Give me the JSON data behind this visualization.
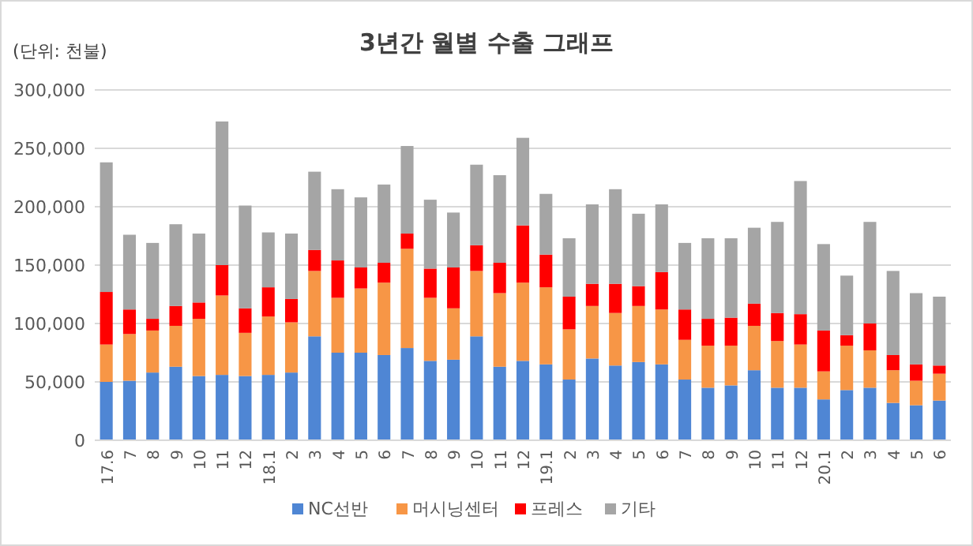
{
  "chart_data": {
    "type": "bar",
    "stacked": true,
    "title": "3년간 월별 수출 그래프",
    "ylabel": "(단위: 천불)",
    "categories": [
      "17.6",
      "7",
      "8",
      "9",
      "10",
      "11",
      "12",
      "18.1",
      "2",
      "3",
      "4",
      "5",
      "6",
      "7",
      "8",
      "9",
      "10",
      "11",
      "12",
      "19.1",
      "2",
      "3",
      "4",
      "5",
      "6",
      "7",
      "8",
      "9",
      "10",
      "11",
      "12",
      "20.1",
      "2",
      "3",
      "4",
      "5",
      "6"
    ],
    "series": [
      {
        "name": "NC선반",
        "color": "#4f86d4",
        "values": [
          50000,
          51000,
          58000,
          63000,
          55000,
          56000,
          55000,
          56000,
          58000,
          89000,
          75000,
          75000,
          73000,
          79000,
          68000,
          69000,
          89000,
          63000,
          68000,
          65000,
          52000,
          70000,
          64000,
          67000,
          65000,
          52000,
          45000,
          47000,
          60000,
          45000,
          45000,
          35000,
          43000,
          45000,
          32000,
          30000,
          34000
        ]
      },
      {
        "name": "머시닝센터",
        "color": "#f79646",
        "values": [
          32000,
          40000,
          36000,
          35000,
          49000,
          68000,
          37000,
          50000,
          43000,
          56000,
          47000,
          55000,
          62000,
          85000,
          54000,
          44000,
          56000,
          63000,
          67000,
          66000,
          43000,
          45000,
          45000,
          48000,
          47000,
          34000,
          36000,
          34000,
          38000,
          40000,
          37000,
          24000,
          38000,
          32000,
          28000,
          21000,
          23000
        ]
      },
      {
        "name": "프레스",
        "color": "#ff0000",
        "values": [
          45000,
          21000,
          10000,
          17000,
          14000,
          26000,
          21000,
          25000,
          20000,
          18000,
          32000,
          18000,
          17000,
          13000,
          25000,
          35000,
          22000,
          26000,
          49000,
          28000,
          28000,
          19000,
          25000,
          17000,
          32000,
          26000,
          23000,
          24000,
          19000,
          24000,
          26000,
          35000,
          9000,
          23000,
          13000,
          14000,
          7000
        ]
      },
      {
        "name": "기타",
        "color": "#a5a5a5",
        "values": [
          111000,
          64000,
          65000,
          70000,
          59000,
          123000,
          88000,
          47000,
          56000,
          67000,
          61000,
          60000,
          67000,
          75000,
          59000,
          47000,
          69000,
          75000,
          75000,
          52000,
          50000,
          68000,
          81000,
          62000,
          58000,
          57000,
          69000,
          68000,
          65000,
          78000,
          114000,
          74000,
          51000,
          87000,
          72000,
          61000,
          59000
        ]
      }
    ],
    "ylim": [
      0,
      300000
    ],
    "yticks": [
      {
        "value": 0,
        "label": "0"
      },
      {
        "value": 50000,
        "label": "50,000"
      },
      {
        "value": 100000,
        "label": "100,000"
      },
      {
        "value": 150000,
        "label": "150,000"
      },
      {
        "value": 200000,
        "label": "200,000"
      },
      {
        "value": 250000,
        "label": "250,000"
      },
      {
        "value": 300000,
        "label": "300,000"
      }
    ],
    "grid": "y",
    "legend": "bottom"
  }
}
